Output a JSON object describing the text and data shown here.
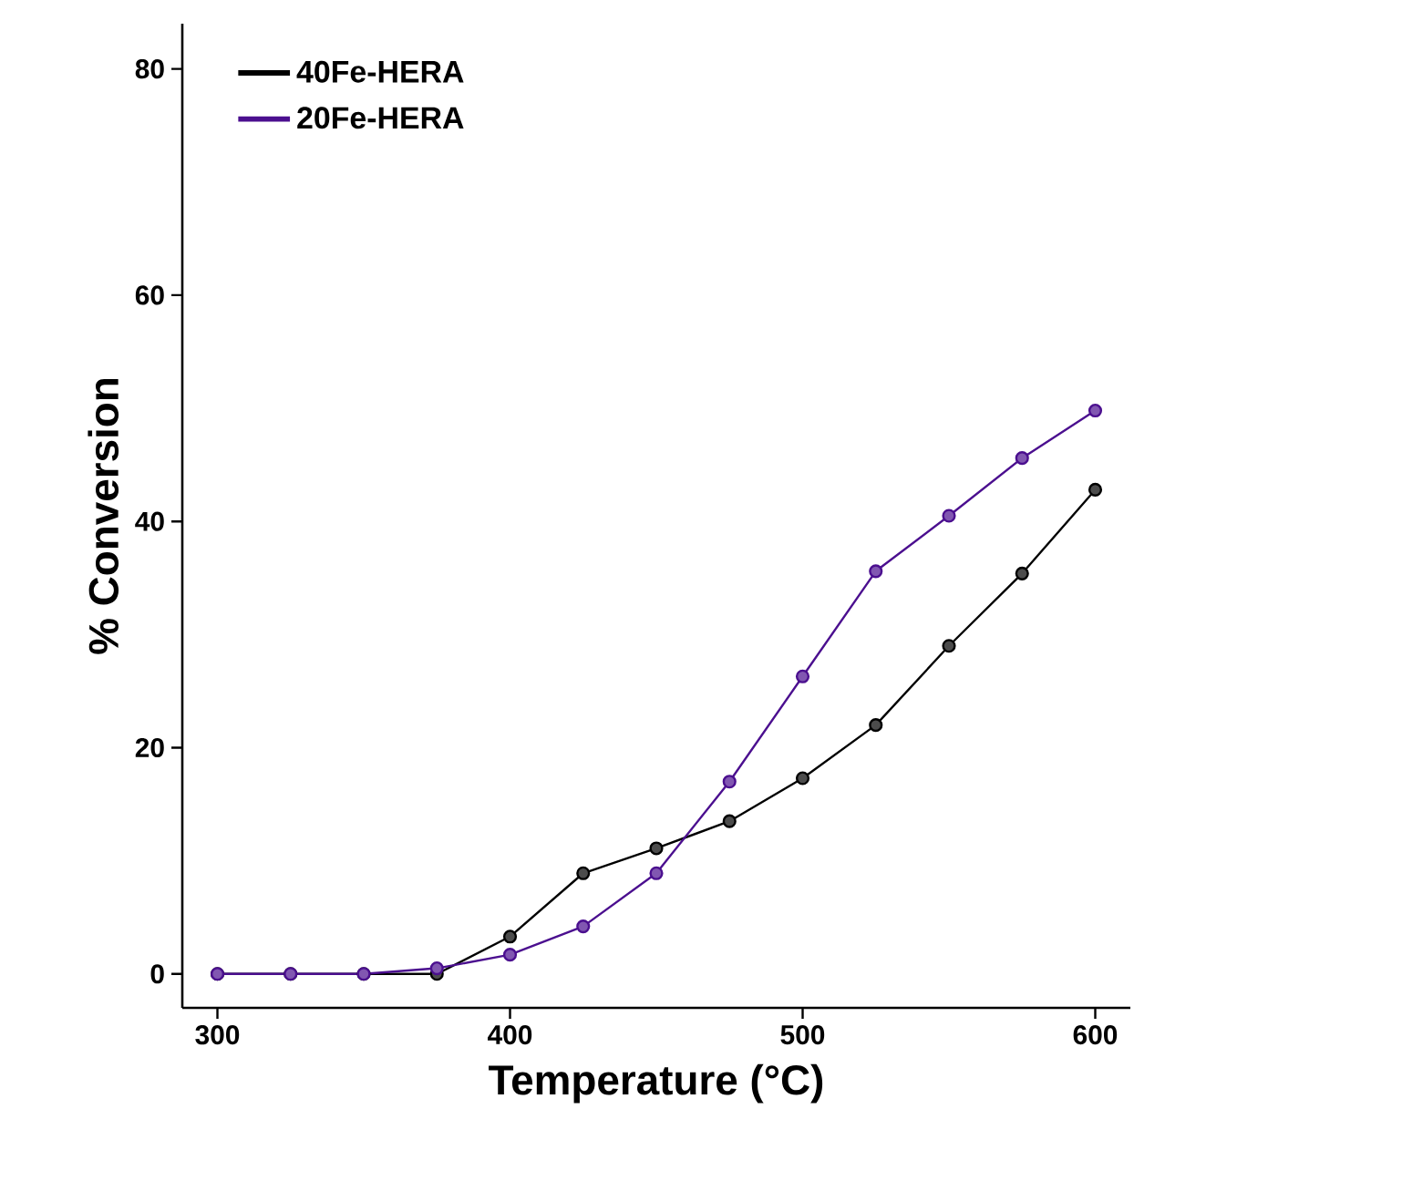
{
  "chart_data": {
    "type": "line",
    "xlabel": "Temperature (°C)",
    "ylabel": "% Conversion",
    "x": [
      300,
      325,
      350,
      375,
      400,
      425,
      450,
      475,
      500,
      525,
      550,
      575,
      600
    ],
    "series": [
      {
        "name": "40Fe-HERA",
        "color": "#000000",
        "values": [
          0,
          0,
          0,
          0,
          3.3,
          8.9,
          11.1,
          13.5,
          17.3,
          22,
          29,
          35.4,
          42.8
        ]
      },
      {
        "name": "20Fe-HERA",
        "color": "#4b0f8f",
        "values": [
          0,
          0,
          0,
          0.5,
          1.7,
          4.2,
          8.9,
          17,
          26.3,
          35.6,
          40.5,
          45.6,
          49.8
        ]
      }
    ],
    "xlim": [
      288,
      612
    ],
    "ylim": [
      -3,
      84
    ],
    "xticks": [
      300,
      400,
      500,
      600
    ],
    "yticks": [
      0,
      20,
      40,
      60,
      80
    ],
    "grid": false,
    "legend": "top left",
    "marker": "circle",
    "line_style": "solid"
  }
}
